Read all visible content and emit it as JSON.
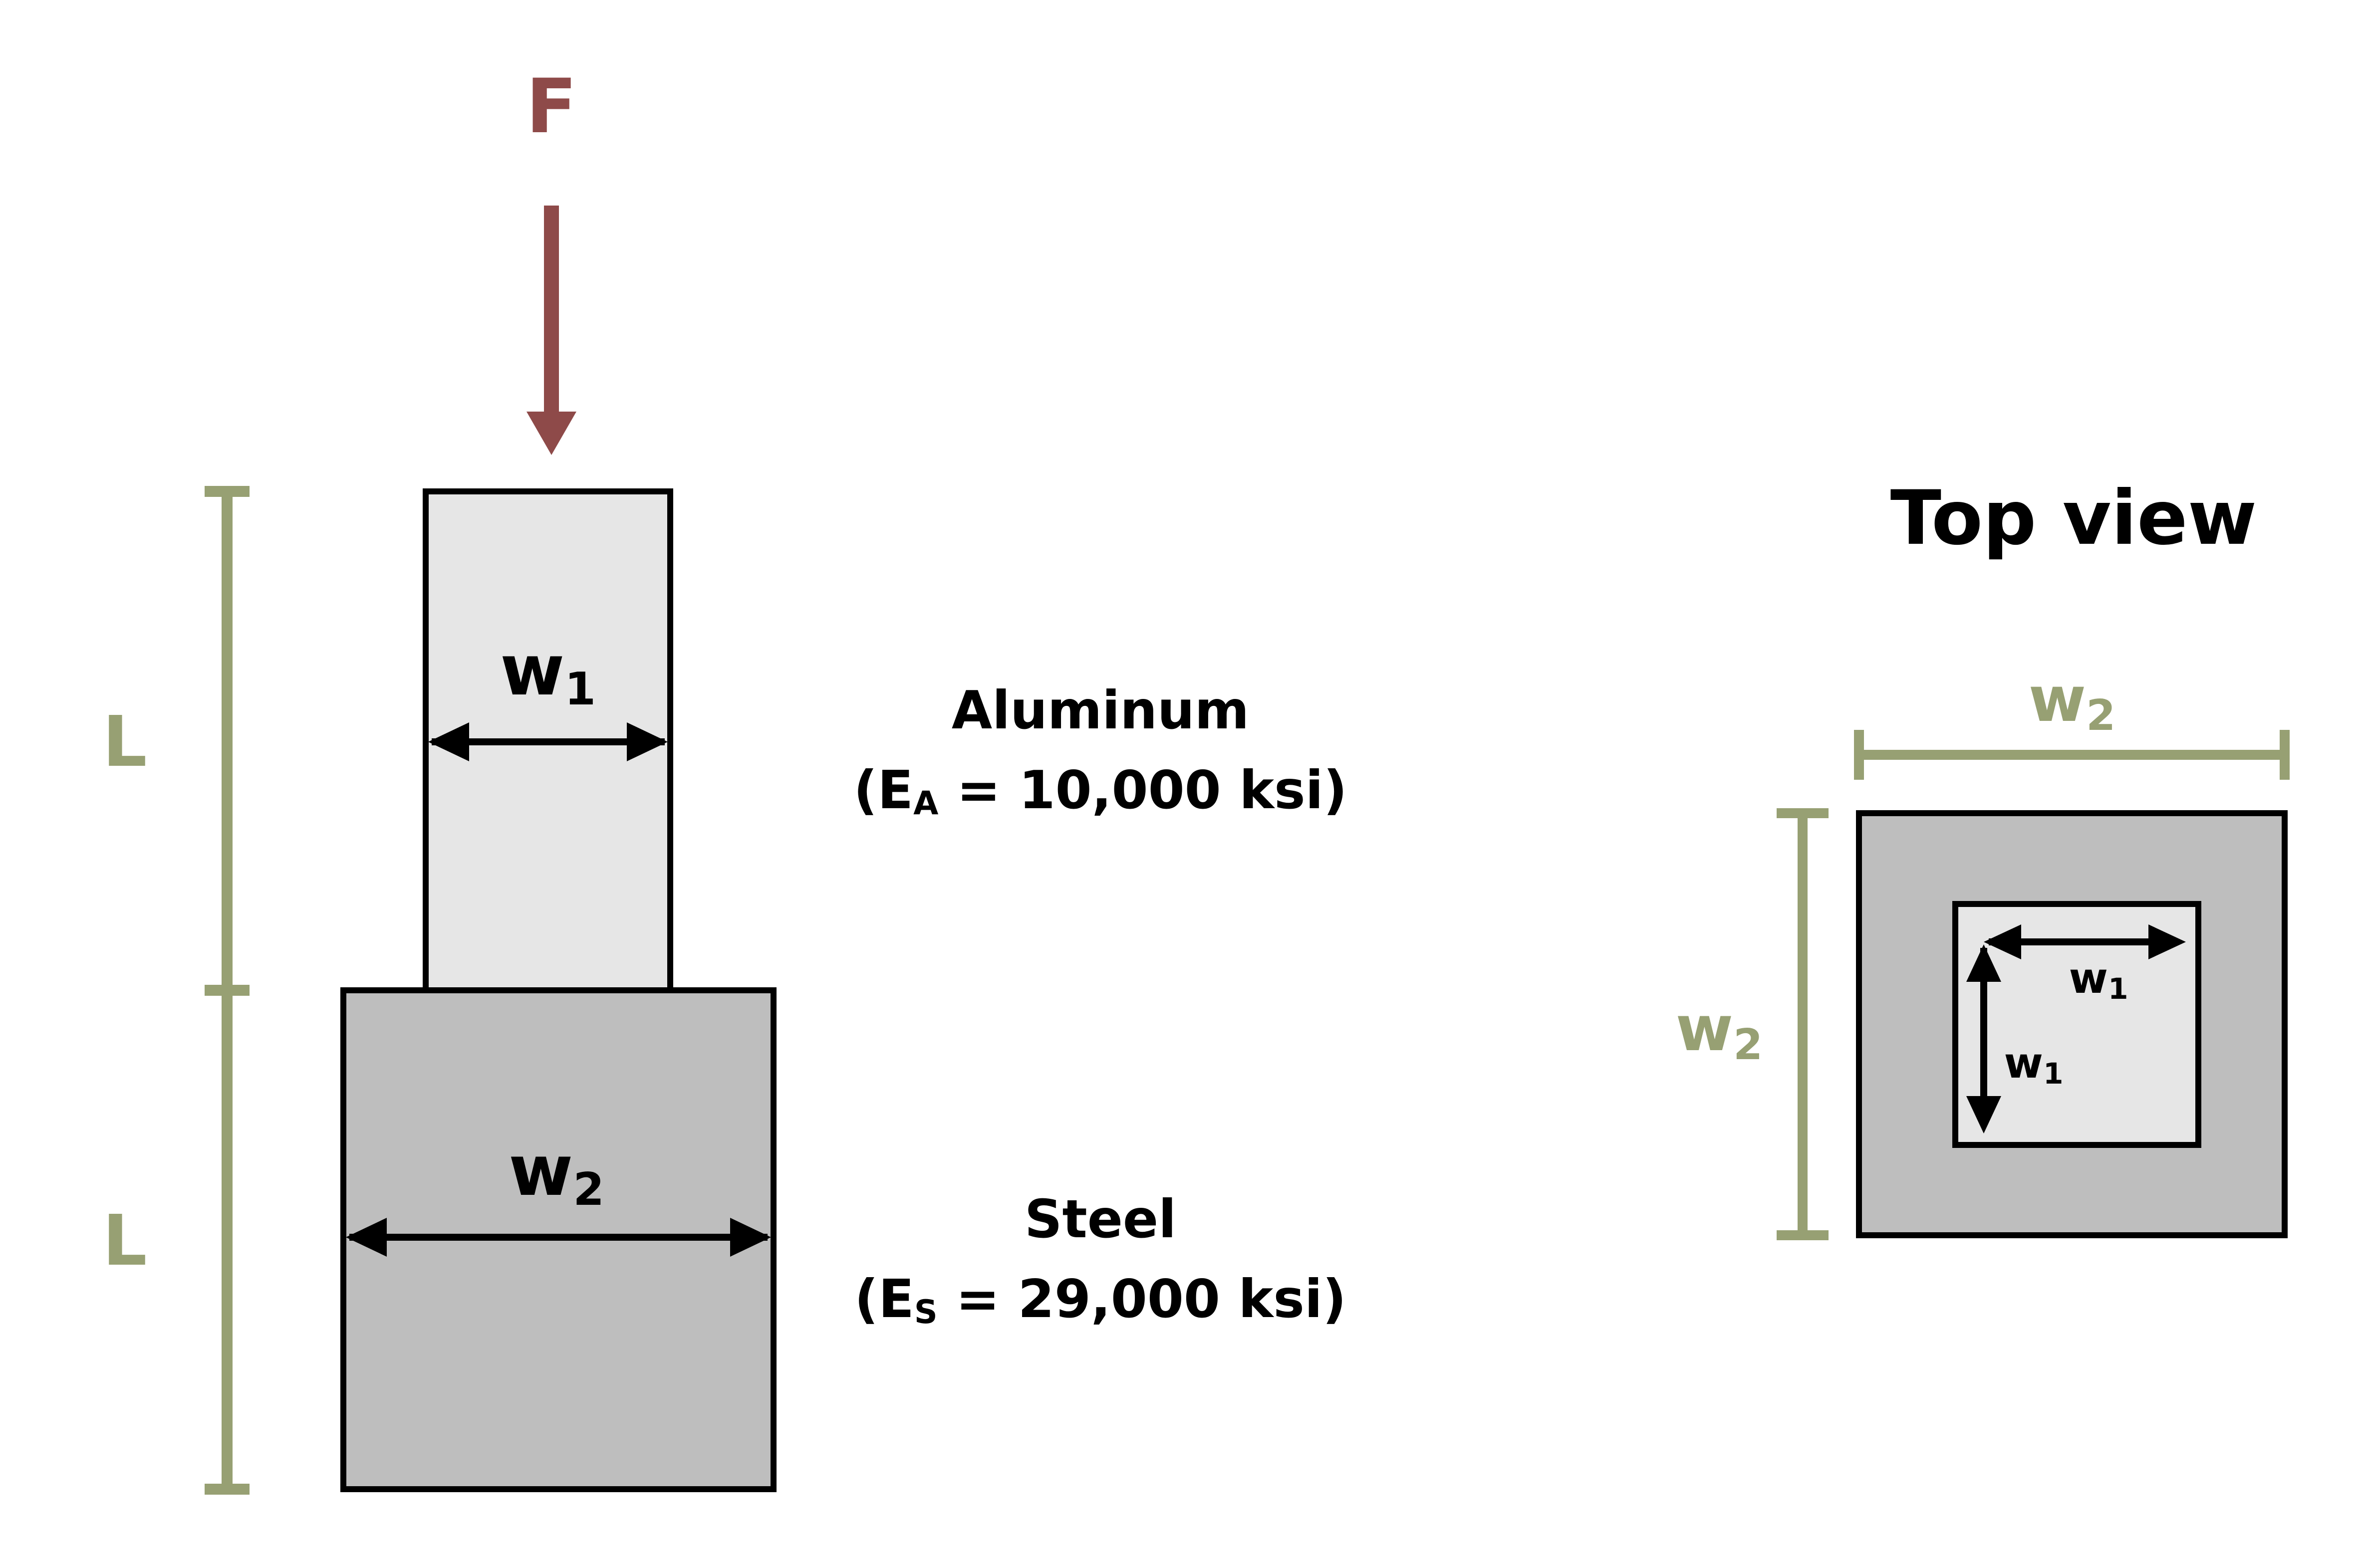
{
  "force": {
    "label": "F"
  },
  "side_view": {
    "length_label": "L",
    "upper_block": {
      "width_label": "w",
      "width_sub": "1",
      "material": "Aluminum",
      "modulus_open": "(E",
      "modulus_sub": "A",
      "modulus_rest": " = 10,000 ksi)"
    },
    "lower_block": {
      "width_label": "w",
      "width_sub": "2",
      "material": "Steel",
      "modulus_open": "(E",
      "modulus_sub": "S",
      "modulus_rest": " = 29,000 ksi)"
    }
  },
  "top_view": {
    "title": "Top view",
    "outer_width_label": "w",
    "outer_width_sub": "2",
    "inner_width_label": "w",
    "inner_width_sub": "1"
  },
  "colors": {
    "force": "#8e4a49",
    "dimension": "#97a073",
    "aluminum_fill": "#e6e6e6",
    "steel_fill": "#bebebe",
    "outline": "#000000"
  }
}
